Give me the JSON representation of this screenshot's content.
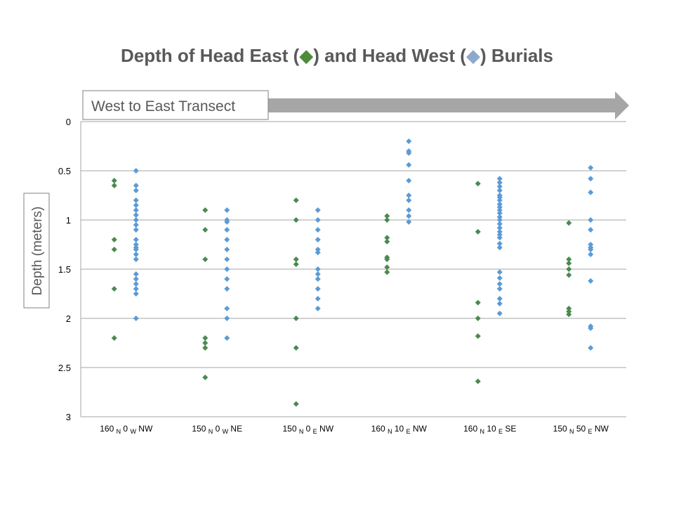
{
  "title": {
    "prefix": "Depth of Head East (",
    "middle": ") and Head West (",
    "suffix": ") Burials"
  },
  "transect_label": "West to East Transect",
  "colors": {
    "head_east": "#4a8a4f",
    "head_west": "#5b9bd5",
    "title_east_marker": "#4e8b3a",
    "title_west_marker": "#8ea9cc",
    "arrow": "#a6a6a6",
    "grid": "#a6a6a6",
    "text": "#595959"
  },
  "chart_data": {
    "type": "scatter",
    "title": "Depth of Head East (◆) and Head West (◆) Burials",
    "ylabel": "Depth (meters)",
    "xlabel": "",
    "y_axis": {
      "min": 0,
      "max": 3,
      "step": 0.5,
      "reversed": true,
      "tick_labels": [
        "0",
        "0.5",
        "1",
        "1.5",
        "2",
        "2.5",
        "3"
      ]
    },
    "grid": true,
    "categories": [
      {
        "n": "160",
        "ns": "N",
        "e": "0",
        "ew": "W",
        "q": "NW"
      },
      {
        "n": "150",
        "ns": "N",
        "e": "0",
        "ew": "W",
        "q": "NE"
      },
      {
        "n": "150",
        "ns": "N",
        "e": "0",
        "ew": "E",
        "q": "NW"
      },
      {
        "n": "160",
        "ns": "N",
        "e": "10",
        "ew": "E",
        "q": "NW"
      },
      {
        "n": "160",
        "ns": "N",
        "e": "10",
        "ew": "E",
        "q": "SE"
      },
      {
        "n": "150",
        "ns": "N",
        "e": "50",
        "ew": "E",
        "q": "NW"
      }
    ],
    "series": [
      {
        "key": "head_east",
        "values": [
          [
            0.6,
            0.65,
            1.2,
            1.3,
            1.7,
            2.2
          ],
          [
            0.9,
            1.1,
            1.4,
            2.2,
            2.25,
            2.3,
            2.6
          ],
          [
            0.8,
            1.0,
            1.4,
            1.45,
            2.0,
            2.3,
            2.87
          ],
          [
            0.96,
            1.0,
            1.18,
            1.22,
            1.38,
            1.4,
            1.48,
            1.53
          ],
          [
            0.63,
            1.12,
            1.84,
            2.0,
            2.18,
            2.64
          ],
          [
            1.03,
            1.4,
            1.44,
            1.5,
            1.56,
            1.9,
            1.93,
            1.96
          ]
        ]
      },
      {
        "key": "head_west",
        "values": [
          [
            0.5,
            0.65,
            0.7,
            0.8,
            0.85,
            0.9,
            0.95,
            1.0,
            1.05,
            1.1,
            1.2,
            1.25,
            1.28,
            1.3,
            1.35,
            1.4,
            1.55,
            1.6,
            1.65,
            1.7,
            1.75,
            2.0
          ],
          [
            0.9,
            1.0,
            1.02,
            1.1,
            1.2,
            1.3,
            1.4,
            1.5,
            1.6,
            1.7,
            1.9,
            2.0,
            2.2
          ],
          [
            0.9,
            1.0,
            1.1,
            1.2,
            1.3,
            1.33,
            1.5,
            1.55,
            1.6,
            1.7,
            1.8,
            1.9
          ],
          [
            0.2,
            0.3,
            0.32,
            0.44,
            0.6,
            0.75,
            0.8,
            0.9,
            0.96,
            1.02
          ],
          [
            0.58,
            0.62,
            0.66,
            0.7,
            0.75,
            0.77,
            0.8,
            0.84,
            0.87,
            0.9,
            0.93,
            0.97,
            1.0,
            1.04,
            1.08,
            1.12,
            1.15,
            1.18,
            1.24,
            1.28,
            1.53,
            1.59,
            1.65,
            1.7,
            1.8,
            1.85,
            1.95
          ],
          [
            0.47,
            0.58,
            0.72,
            1.0,
            1.1,
            1.25,
            1.28,
            1.3,
            1.35,
            1.62,
            2.08,
            2.1,
            2.3
          ]
        ]
      }
    ]
  }
}
